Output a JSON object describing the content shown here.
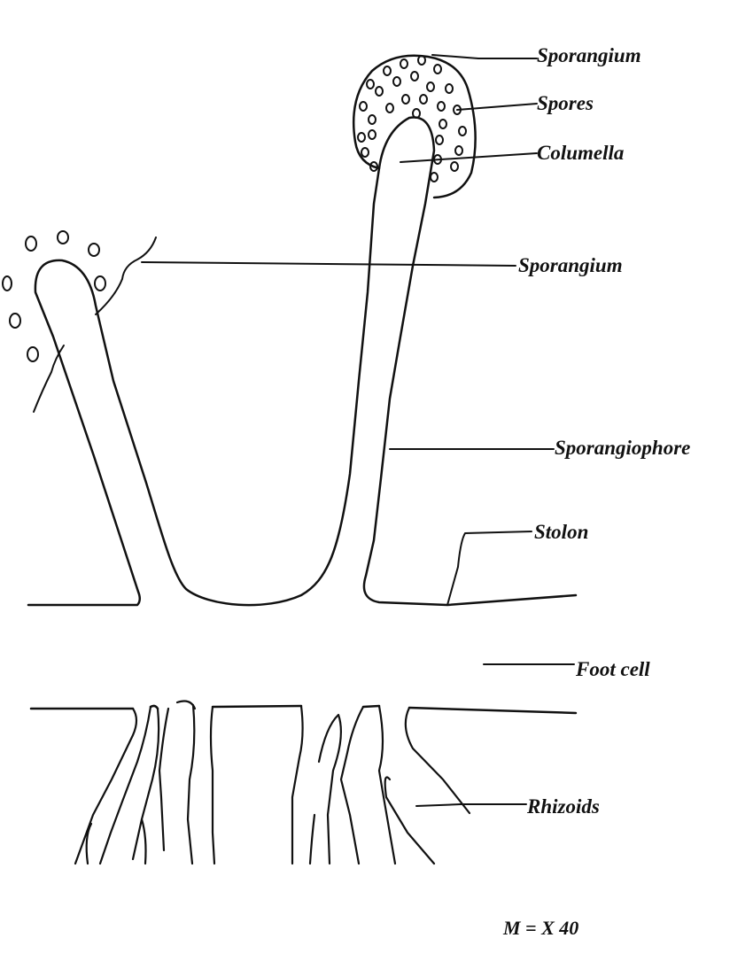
{
  "labels": {
    "sporangium_top": "Sporangium",
    "spores": "Spores",
    "columella": "Columella",
    "sporangium_burst": "Sporangium",
    "sporangiophore": "Sporangiophore",
    "stolon": "Stolon",
    "foot_cell": "Foot cell",
    "rhizoids": "Rhizoids"
  },
  "magnification": "M  =  X 40",
  "colors": {
    "ink": "#111111",
    "background": "#ffffff"
  }
}
